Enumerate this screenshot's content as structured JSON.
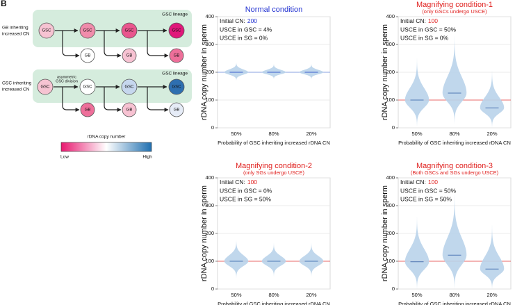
{
  "panel_label": "B",
  "diagram": {
    "rows": [
      {
        "label": [
          "GB inheriting",
          "increased CN"
        ],
        "lineage_label": "GSC lineage",
        "gsc": [
          "GSC",
          "GSC",
          "GSC",
          "GSC"
        ],
        "gb": [
          "GB",
          "GB",
          "GB"
        ]
      },
      {
        "label": [
          "GSC inheriting",
          "increased CN"
        ],
        "lineage_label": "GSC lineage",
        "division_label": [
          "asymmetric",
          "GSC division"
        ],
        "gsc": [
          "GSC",
          "GSC",
          "GSC",
          "GSC"
        ],
        "gb": [
          "GB",
          "GB",
          "GB"
        ]
      }
    ],
    "legend": {
      "title": "rDNA copy number",
      "low": "Low",
      "high": "High"
    }
  },
  "chart_data": [
    {
      "type": "violin",
      "title": "Normal condition",
      "title_color": "#1f2fd0",
      "initial_cn_label": "Initial CN:",
      "initial_cn": 200,
      "initial_cn_color": "#1f2fd0",
      "notes": [
        "USCE in GSC = 4%",
        "USCE in SG = 0%"
      ],
      "categories": [
        "50%",
        "80%",
        "20%"
      ],
      "medians": [
        200,
        200,
        200
      ],
      "mins": [
        170,
        175,
        175
      ],
      "maxs": [
        235,
        230,
        230
      ],
      "color": "#b9d3ea",
      "median_color": "#3a5fcd",
      "reference_color": "#8aa0e0",
      "xlabel": "Probability of GSC inheriting increased rDNA CN",
      "ylabel": "rDNA copy number in sperm",
      "ylim": [
        0,
        400
      ],
      "yticks": [
        0,
        100,
        200,
        300,
        400
      ],
      "grid": true
    },
    {
      "type": "violin",
      "title": "Magnifying condition-1",
      "subtitle": "(only GSCs undergo USCE)",
      "title_color": "#e0201e",
      "initial_cn_label": "Initial CN:",
      "initial_cn": 100,
      "initial_cn_color": "#e0201e",
      "notes": [
        "USCE in GSC = 50%",
        "USCE in SG = 0%"
      ],
      "categories": [
        "50%",
        "80%",
        "20%"
      ],
      "medians": [
        100,
        125,
        72
      ],
      "mins": [
        5,
        15,
        2
      ],
      "maxs": [
        250,
        330,
        205
      ],
      "color": "#b9d3ea",
      "median_color": "#4e79b5",
      "reference_color": "#e86a6a",
      "xlabel": "Probability of GSC inheriting increased rDNA CN",
      "ylabel": "rDNA copy number in sperm",
      "ylim": [
        0,
        400
      ],
      "yticks": [
        0,
        100,
        200,
        300,
        400
      ],
      "grid": true
    },
    {
      "type": "violin",
      "title": "Magnifying condition-2",
      "subtitle": "(only SGs undergo USCE)",
      "title_color": "#e0201e",
      "initial_cn_label": "Initial CN:",
      "initial_cn": 100,
      "initial_cn_color": "#e0201e",
      "notes": [
        "USCE in GSC = 0%",
        "USCE in SG = 50%"
      ],
      "categories": [
        "50%",
        "80%",
        "20%"
      ],
      "medians": [
        100,
        100,
        100
      ],
      "mins": [
        40,
        45,
        45
      ],
      "maxs": [
        175,
        165,
        165
      ],
      "color": "#b9d3ea",
      "median_color": "#4e79b5",
      "reference_color": "#e86a6a",
      "xlabel": "Probability of GSC inheriting increased rDNA CN",
      "ylabel": "rDNA copy number in sperm",
      "ylim": [
        0,
        400
      ],
      "yticks": [
        0,
        100,
        200,
        300,
        400
      ],
      "grid": true
    },
    {
      "type": "violin",
      "title": "Magnifying condition-3",
      "subtitle": "(Both GSCs and SGs undergo USCE)",
      "title_color": "#e0201e",
      "initial_cn_label": "Initial CN:",
      "initial_cn": 100,
      "initial_cn_color": "#e0201e",
      "notes": [
        "USCE in GSC = 50%",
        "USCE in SG = 50%"
      ],
      "categories": [
        "50%",
        "80%",
        "20%"
      ],
      "medians": [
        98,
        122,
        72
      ],
      "mins": [
        0,
        0,
        0
      ],
      "maxs": [
        260,
        340,
        230
      ],
      "color": "#b9d3ea",
      "median_color": "#4e79b5",
      "reference_color": "#e86a6a",
      "xlabel": "Probability of GSC inheriting increased rDNA CN",
      "ylabel": "rDNA copy number in sperm",
      "ylim": [
        0,
        400
      ],
      "yticks": [
        0,
        100,
        200,
        300,
        400
      ],
      "grid": true
    }
  ]
}
